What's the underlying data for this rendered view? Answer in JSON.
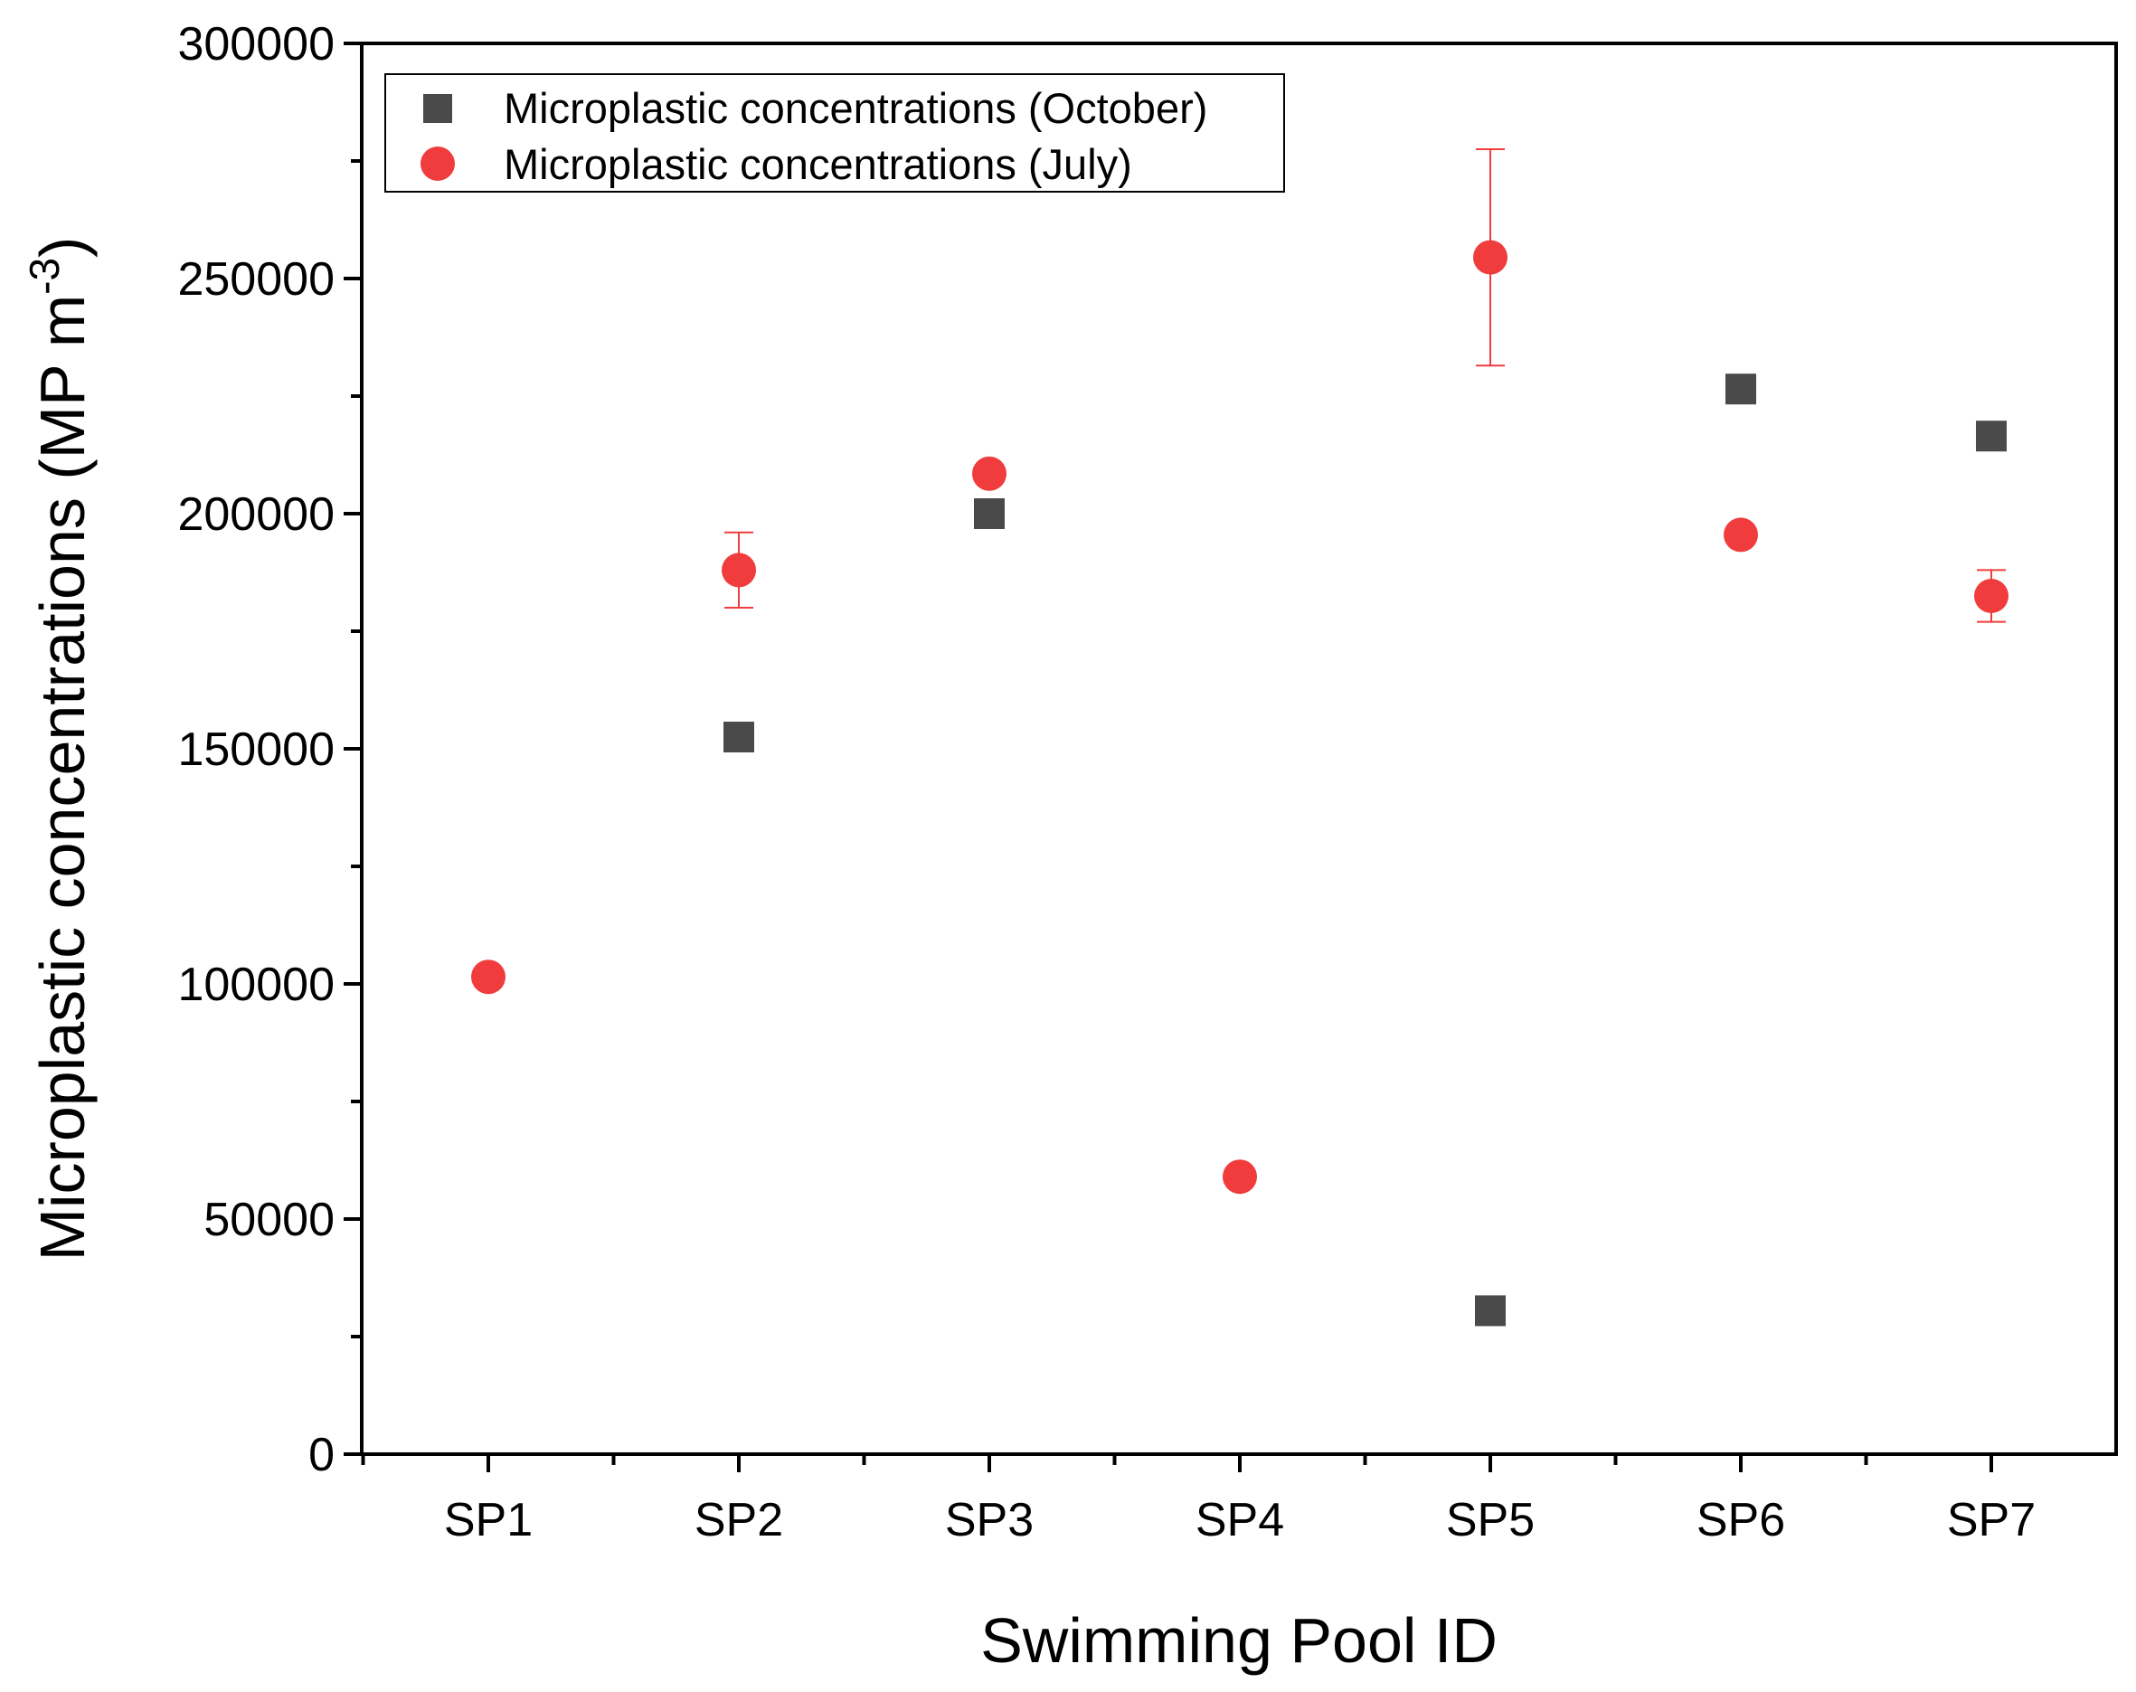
{
  "chart_data": {
    "type": "scatter",
    "title": "",
    "xlabel": "Swimming Pool ID",
    "ylabel": "Microplastic concentrations (MP m",
    "ylabel_sup": "-3",
    "ylabel_close": ")",
    "categories": [
      "SP1",
      "SP2",
      "SP3",
      "SP4",
      "SP5",
      "SP6",
      "SP7"
    ],
    "ylim": [
      0,
      300000
    ],
    "yticks": [
      0,
      50000,
      100000,
      150000,
      200000,
      250000,
      300000
    ],
    "ytick_labels": [
      "0",
      "50000",
      "100000",
      "150000",
      "200000",
      "250000",
      "300000"
    ],
    "grid": false,
    "legend_position": "top-left",
    "series": [
      {
        "name": "Microplastic concentrations (October)",
        "marker": "square",
        "color": "#4a4a4a",
        "values": [
          null,
          152500,
          200000,
          null,
          30500,
          226500,
          216500
        ],
        "errors": [
          null,
          null,
          null,
          null,
          null,
          null,
          null
        ]
      },
      {
        "name": "Microplastic concentrations (July)",
        "marker": "circle",
        "color": "#f03c3c",
        "values": [
          101500,
          188000,
          208500,
          59000,
          254500,
          195500,
          182500
        ],
        "errors": [
          null,
          8000,
          null,
          null,
          23000,
          null,
          5500
        ]
      }
    ]
  }
}
